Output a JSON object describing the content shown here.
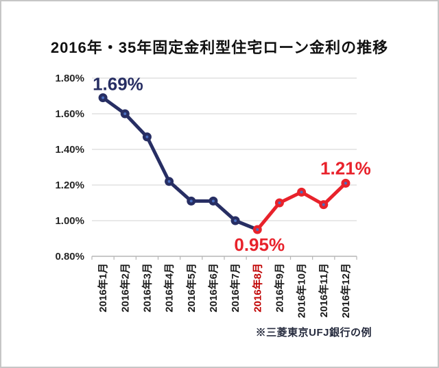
{
  "title": "2016年・35年固定金利型住宅ローン金利の推移",
  "footnote": "※三菱東京UFJ銀行の例",
  "chart_data": {
    "type": "line",
    "title": "2016年・35年固定金利型住宅ローン金利の推移",
    "categories": [
      "2016年1月",
      "2016年2月",
      "2016年3月",
      "2016年4月",
      "2016年5月",
      "2016年6月",
      "2016年7月",
      "2016年8月",
      "2016年9月",
      "2016年10月",
      "2016年11月",
      "2016年12月"
    ],
    "series": [
      {
        "name": "35年固定金利型住宅ローン金利",
        "values": [
          1.69,
          1.6,
          1.47,
          1.22,
          1.11,
          1.11,
          1.0,
          0.95,
          1.1,
          1.16,
          1.09,
          1.21
        ]
      }
    ],
    "ylim": [
      0.8,
      1.8
    ],
    "yticks": [
      "0.80%",
      "1.00%",
      "1.20%",
      "1.40%",
      "1.60%",
      "1.80%"
    ],
    "grid": true,
    "legend": "none",
    "red_from_index": 7,
    "x_highlight_index": 7,
    "colors": {
      "navy": "#272e63",
      "red": "#e8222b",
      "marker_dot": "#4a6fc1",
      "grid": "#d9d9d9",
      "axis": "#b5b5b5",
      "tick_label": "#262626",
      "x_label": "#1a1a1a",
      "x_highlight": "#c00000",
      "title": "#111111",
      "footnote": "#252a3d"
    },
    "annotations": [
      {
        "index": 0,
        "text": "1.69%",
        "color": "navy",
        "position": "above-right"
      },
      {
        "index": 7,
        "text": "0.95%",
        "color": "red",
        "position": "below"
      },
      {
        "index": 11,
        "text": "1.21%",
        "color": "red",
        "position": "above"
      }
    ]
  }
}
